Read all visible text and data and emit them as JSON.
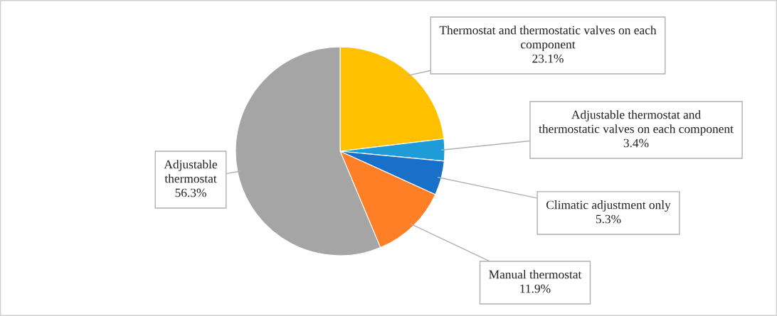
{
  "chart_data": {
    "type": "pie",
    "categories": [
      "Thermostat and thermostatic valves on each\ncomponent",
      "Adjustable thermostat and\nthermostatic valves on each component",
      "Climatic adjustment only",
      "Manual thermostat",
      "Adjustable\nthermostat"
    ],
    "values": [
      23.1,
      3.4,
      5.3,
      11.9,
      56.3
    ],
    "colors": [
      "#ffc000",
      "#1f9bd8",
      "#1870c8",
      "#ff7f27",
      "#a5a5a5"
    ],
    "value_labels": [
      "23.1%",
      "3.4%",
      "5.3%",
      "11.9%",
      "56.3%"
    ]
  }
}
